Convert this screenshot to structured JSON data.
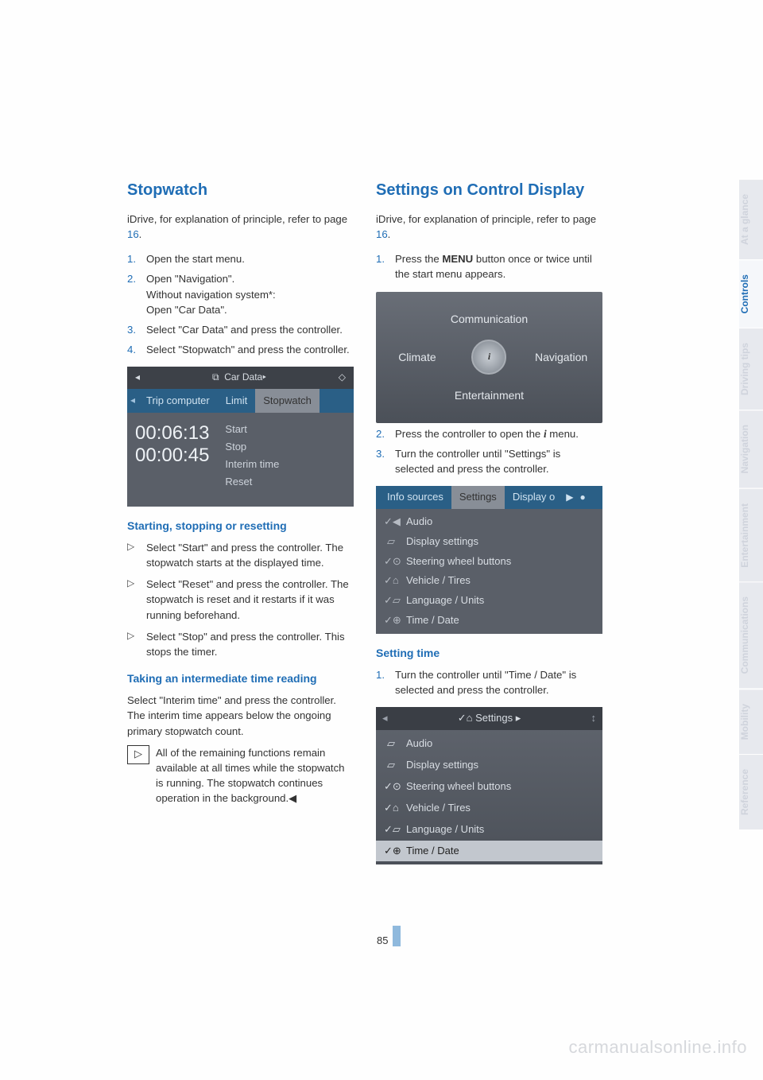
{
  "left": {
    "heading": "Stopwatch",
    "intro_1": "iDrive, for explanation of principle, refer to page ",
    "intro_page": "16",
    "intro_2": ".",
    "steps": [
      "Open the start menu.",
      "Open \"Navigation\".\nWithout navigation system*:\nOpen \"Car Data\".",
      "Select \"Car Data\" and press the controller.",
      "Select \"Stopwatch\" and press the controller."
    ],
    "ui1": {
      "title": "Car Data",
      "arrow_l": "◂",
      "arrow_r": "▸",
      "icon": "⧉",
      "diamond": "◇",
      "tabs": [
        "Trip computer",
        "Limit",
        "Stopwatch"
      ],
      "time1": "00:06:13",
      "time2": "00:00:45",
      "menu": [
        "Start",
        "Stop",
        "Interim time",
        "Reset"
      ]
    },
    "h2a": "Starting, stopping or resetting",
    "bullets_a": [
      "Select \"Start\" and press the controller. The stopwatch starts at the displayed time.",
      "Select \"Reset\" and press the controller. The stopwatch is reset and it restarts if it was running beforehand.",
      "Select \"Stop\" and press the controller. This stops the timer."
    ],
    "h2b": "Taking an intermediate time reading",
    "para_b": "Select \"Interim time\" and press the controller. The interim time appears below the ongoing primary stopwatch count.",
    "note_icon": "▷",
    "note": "All of the remaining functions remain available at all times while the stopwatch is running. The stopwatch continues operation in the background.◀"
  },
  "right": {
    "heading": "Settings on Control Display",
    "intro_1": "iDrive, for explanation of principle, refer to page ",
    "intro_page": "16",
    "intro_2": ".",
    "step1_a": "Press the ",
    "step1_b": "MENU",
    "step1_c": " button once or twice until the start menu appears.",
    "ui2": {
      "top": "Communication",
      "left": "Climate",
      "right": "Navigation",
      "bottom": "Entertainment",
      "center": "i"
    },
    "step2_a": "Press the controller to open the ",
    "step2_b": "i",
    "step2_c": " menu.",
    "step3": "Turn the controller until \"Settings\" is selected and press the controller.",
    "ui3": {
      "tabs": [
        "Info sources",
        "Settings",
        "Display o"
      ],
      "play": "▶",
      "dot": "●",
      "items": [
        {
          "ic": "✓◀",
          "t": "Audio"
        },
        {
          "ic": "▱",
          "t": "Display settings"
        },
        {
          "ic": "✓⊙",
          "t": "Steering wheel buttons"
        },
        {
          "ic": "✓⌂",
          "t": "Vehicle / Tires"
        },
        {
          "ic": "✓▱",
          "t": "Language / Units"
        },
        {
          "ic": "✓⊕",
          "t": "Time / Date"
        }
      ]
    },
    "h2c": "Setting time",
    "step_c1": "Turn the controller until \"Time / Date\" is selected and press the controller.",
    "ui4": {
      "chev_l": "◂",
      "title_ic": "✓⌂",
      "title": "Settings",
      "chev_r": "▸",
      "scroll": "↕",
      "items": [
        {
          "ic": "▱",
          "t": "Audio"
        },
        {
          "ic": "▱",
          "t": "Display settings"
        },
        {
          "ic": "✓⊙",
          "t": "Steering wheel buttons"
        },
        {
          "ic": "✓⌂",
          "t": "Vehicle / Tires"
        },
        {
          "ic": "✓▱",
          "t": "Language / Units"
        },
        {
          "ic": "✓⊕",
          "t": "Time / Date",
          "sel": true
        }
      ]
    }
  },
  "side_tabs": [
    "At a glance",
    "Controls",
    "Driving tips",
    "Navigation",
    "Entertainment",
    "Communications",
    "Mobility",
    "Reference"
  ],
  "side_active_index": 1,
  "page_number": "85",
  "watermark": "carmanualsonline.info"
}
